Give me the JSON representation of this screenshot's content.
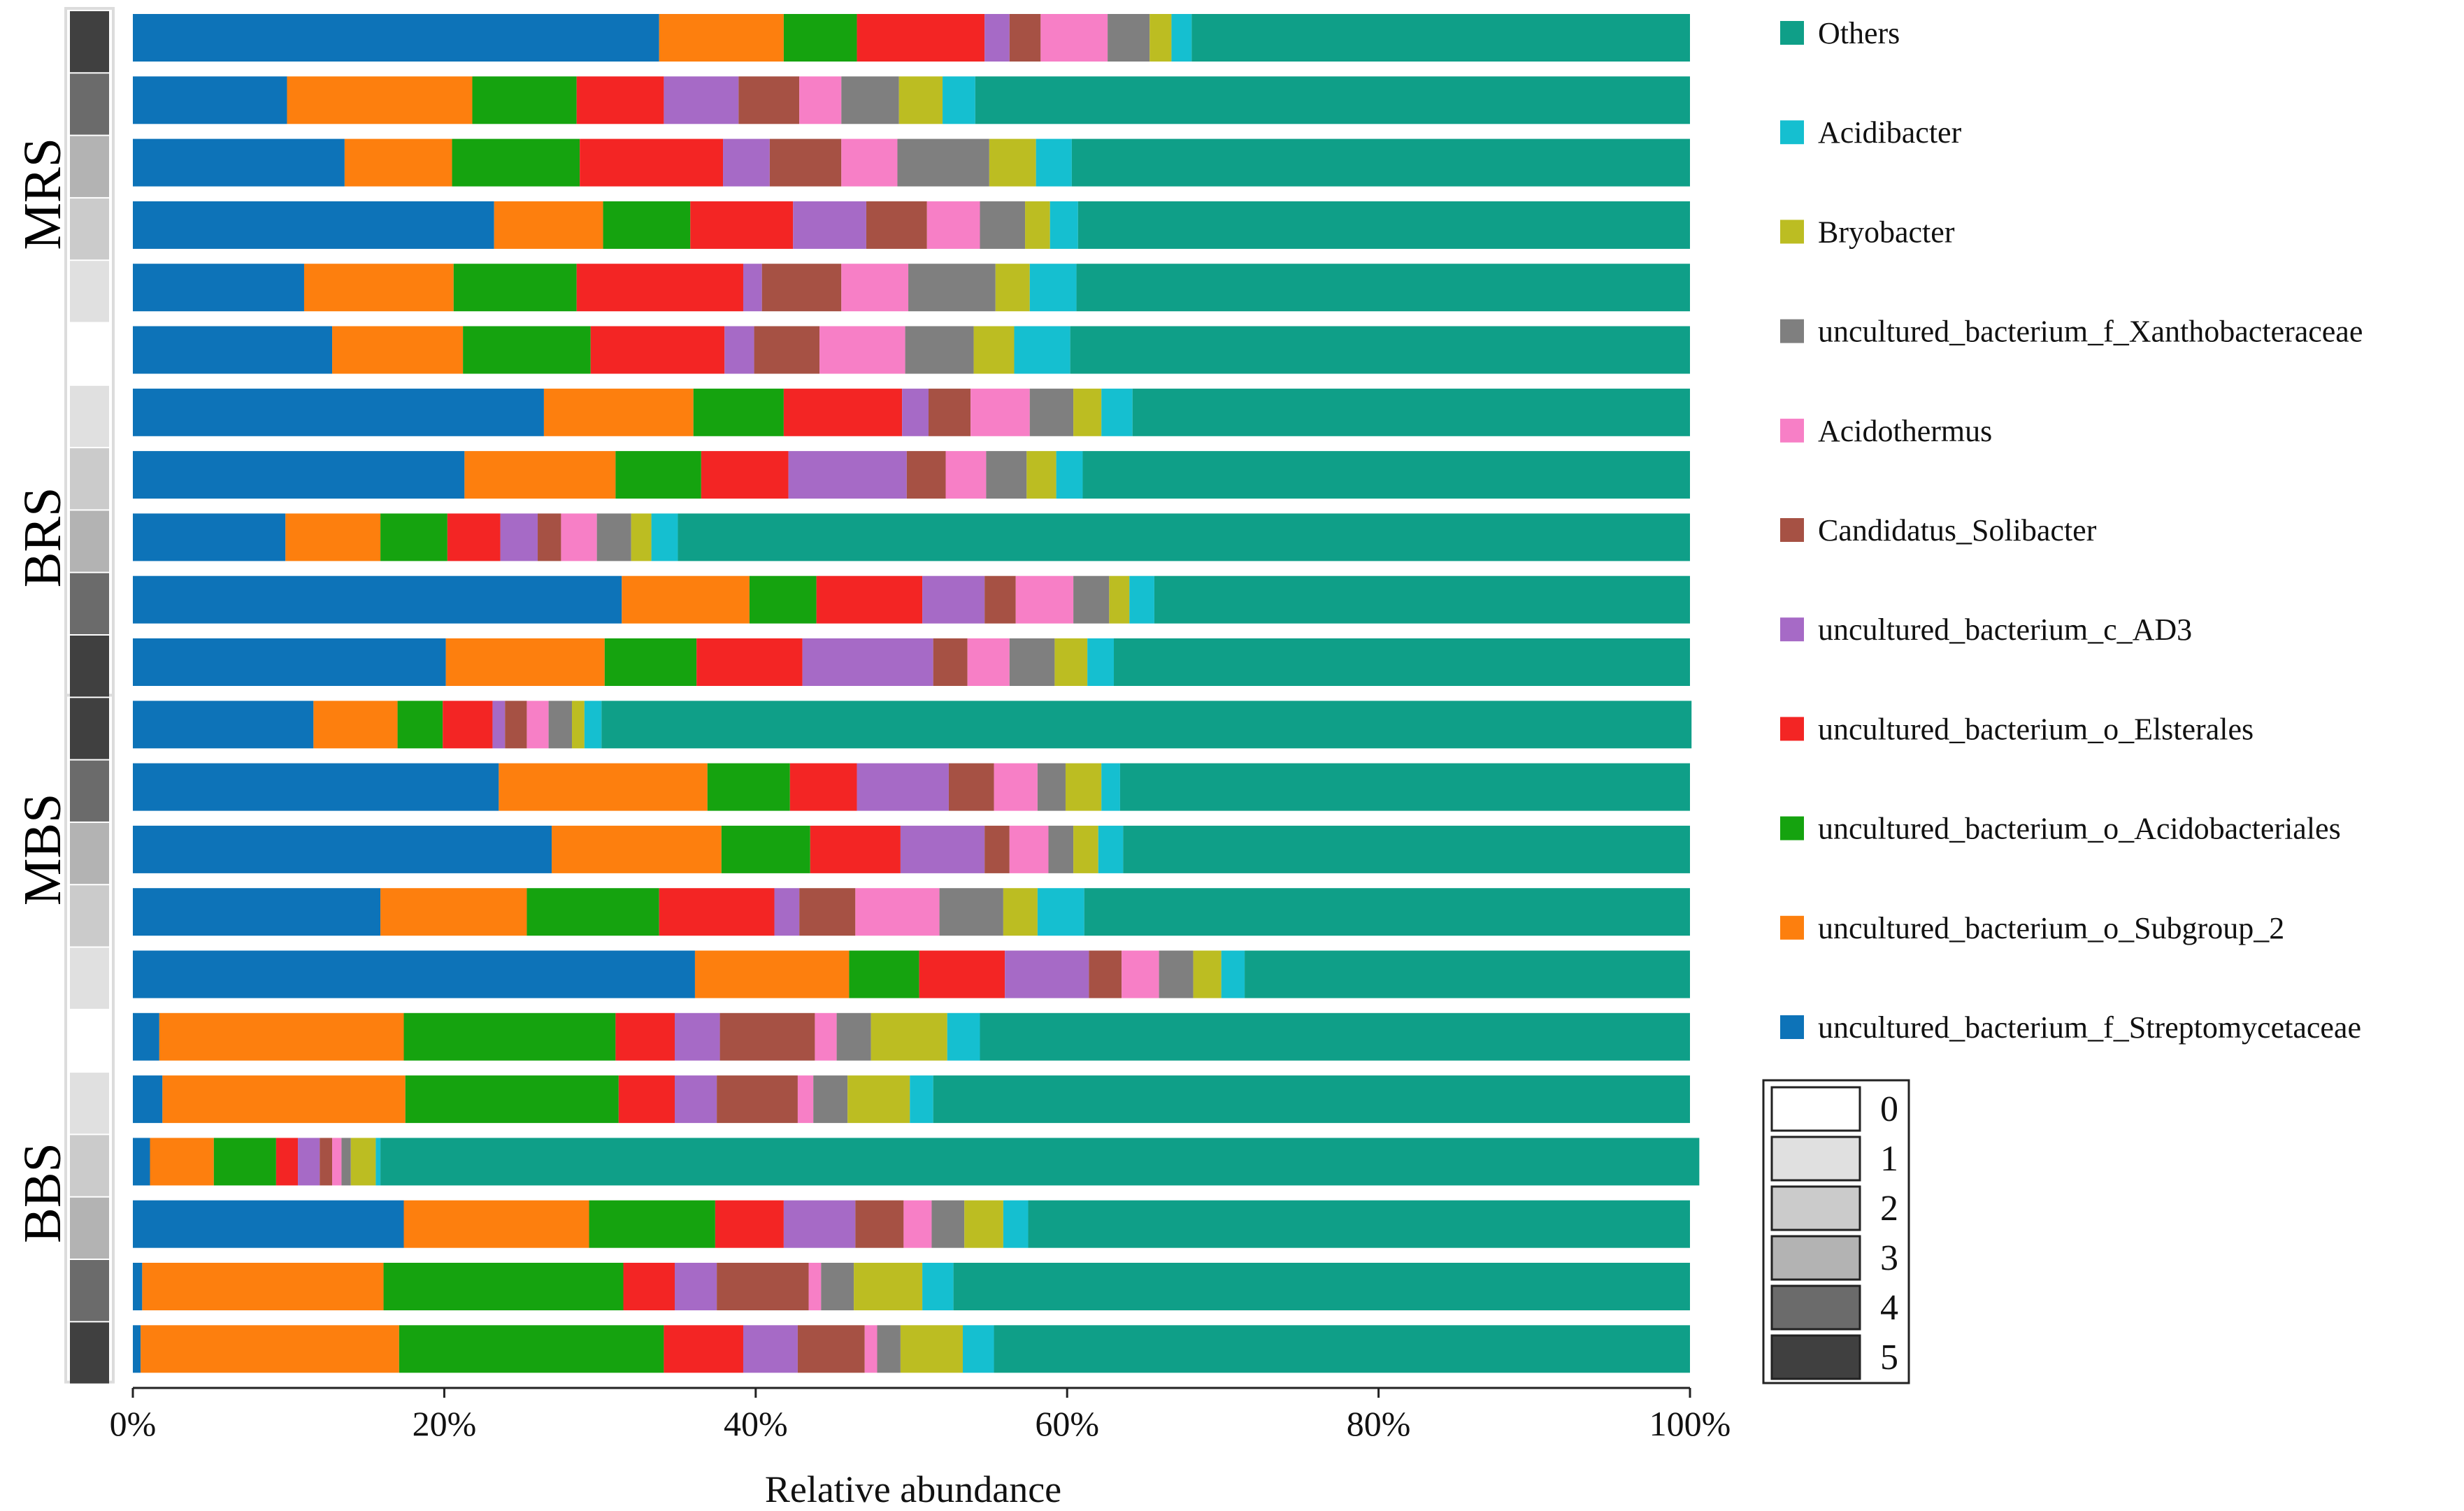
{
  "chart_data": {
    "type": "bar",
    "orientation": "horizontal",
    "stacked": true,
    "normalized": true,
    "xlabel": "Relative abundance",
    "xlim": [
      0,
      100
    ],
    "x_ticks": [
      "0%",
      "20%",
      "40%",
      "60%",
      "80%",
      "100%"
    ],
    "groups": [
      {
        "label": "MRS",
        "rows": [
          0,
          1,
          2,
          3,
          4,
          5
        ]
      },
      {
        "label": "BRS",
        "rows": [
          6,
          7,
          8,
          9,
          10
        ]
      },
      {
        "label": "MBS",
        "rows": [
          11,
          12,
          13,
          14,
          15
        ]
      },
      {
        "label": "BBS",
        "rows": [
          16,
          17,
          18,
          19,
          20,
          21
        ]
      }
    ],
    "heat_levels": [
      5,
      4,
      3,
      2,
      1,
      0,
      1,
      2,
      3,
      4,
      5,
      5,
      4,
      3,
      2,
      1,
      0,
      1,
      2,
      3,
      4,
      5
    ],
    "heat_scale": {
      "levels": [
        "0",
        "1",
        "2",
        "3",
        "4",
        "5"
      ],
      "colors": [
        "#ffffff",
        "#e0e0e0",
        "#cbcbcb",
        "#b3b3b3",
        "#6b6b6b",
        "#404040"
      ]
    },
    "series": [
      {
        "name": "uncultured_bacterium_f_Streptomycetaceae",
        "color": "#0d73b8",
        "values": [
          33.8,
          9.9,
          13.6,
          23.2,
          11.0,
          12.8,
          26.4,
          21.3,
          9.8,
          31.4,
          20.1,
          11.6,
          23.5,
          26.9,
          15.9,
          36.1,
          1.7,
          1.9,
          1.1,
          17.4,
          0.6,
          0.5
        ]
      },
      {
        "name": "uncultured_bacterium_o_Subgroup_2",
        "color": "#fd7f0e",
        "values": [
          8.0,
          11.9,
          6.9,
          7.0,
          9.6,
          8.4,
          9.6,
          9.7,
          6.1,
          8.2,
          10.2,
          5.4,
          13.4,
          10.9,
          9.4,
          9.9,
          15.7,
          15.6,
          4.1,
          11.9,
          15.5,
          16.6
        ]
      },
      {
        "name": "uncultured_bacterium_o_Acidobacteriales",
        "color": "#15a30f",
        "values": [
          4.7,
          6.7,
          8.2,
          5.6,
          7.9,
          8.2,
          5.8,
          5.5,
          4.3,
          4.3,
          5.9,
          2.9,
          5.3,
          5.7,
          8.5,
          4.5,
          13.6,
          13.7,
          4.0,
          8.1,
          15.4,
          17.0
        ]
      },
      {
        "name": "uncultured_bacterium_o_Elsterales",
        "color": "#f32524",
        "values": [
          8.2,
          5.6,
          9.2,
          6.6,
          10.7,
          8.6,
          7.6,
          5.6,
          3.4,
          6.8,
          6.8,
          3.2,
          4.3,
          5.8,
          7.4,
          5.5,
          3.8,
          3.6,
          1.4,
          4.4,
          3.3,
          5.1
        ]
      },
      {
        "name": "uncultured_bacterium_c_AD3",
        "color": "#a66ac6",
        "values": [
          1.6,
          4.8,
          3.0,
          4.7,
          1.2,
          1.9,
          1.7,
          7.6,
          2.4,
          4.0,
          8.4,
          0.8,
          5.9,
          5.4,
          1.6,
          5.4,
          2.9,
          2.7,
          1.4,
          4.6,
          2.7,
          3.5
        ]
      },
      {
        "name": "Candidatus_Solibacter",
        "color": "#a65144",
        "values": [
          2.0,
          3.9,
          4.6,
          3.9,
          5.1,
          4.2,
          2.7,
          2.5,
          1.5,
          2.0,
          2.2,
          1.4,
          2.9,
          1.6,
          3.6,
          2.1,
          6.1,
          5.2,
          0.8,
          3.1,
          5.9,
          4.3
        ]
      },
      {
        "name": "Acidothermus",
        "color": "#f77fc6",
        "values": [
          4.3,
          2.7,
          3.6,
          3.4,
          4.3,
          5.5,
          3.8,
          2.6,
          2.3,
          3.7,
          2.7,
          1.4,
          2.8,
          2.5,
          5.4,
          2.4,
          1.4,
          1.0,
          0.6,
          1.8,
          0.8,
          0.8
        ]
      },
      {
        "name": "uncultured_bacterium_f_Xanthobacteraceae",
        "color": "#7f7f7f",
        "values": [
          2.7,
          3.7,
          5.9,
          2.9,
          5.6,
          4.4,
          2.8,
          2.6,
          2.2,
          2.3,
          2.9,
          1.5,
          1.8,
          1.6,
          4.1,
          2.2,
          2.2,
          2.2,
          0.6,
          2.1,
          2.1,
          1.5
        ]
      },
      {
        "name": "Bryobacter",
        "color": "#bcbd22",
        "values": [
          1.4,
          2.8,
          3.0,
          1.6,
          2.2,
          2.6,
          1.8,
          1.9,
          1.3,
          1.3,
          2.1,
          0.8,
          2.3,
          1.6,
          2.2,
          1.8,
          4.9,
          4.0,
          1.6,
          2.5,
          4.4,
          4.0
        ]
      },
      {
        "name": "Acidibacter",
        "color": "#15bfd0",
        "values": [
          1.3,
          2.1,
          2.3,
          1.8,
          3.0,
          3.6,
          2.0,
          1.7,
          1.7,
          1.6,
          1.7,
          1.1,
          1.2,
          1.6,
          3.0,
          1.5,
          2.1,
          1.5,
          0.3,
          1.6,
          2.0,
          2.0
        ]
      },
      {
        "name": "Others",
        "color": "#0f9f88",
        "values": [
          32.0,
          45.9,
          39.7,
          39.3,
          39.4,
          39.8,
          35.8,
          39.0,
          65.0,
          34.4,
          37.0,
          70.0,
          36.6,
          36.4,
          38.9,
          28.6,
          45.6,
          48.6,
          84.7,
          42.5,
          47.3,
          44.7
        ]
      }
    ],
    "legend_order": [
      "Others",
      "Acidibacter",
      "Bryobacter",
      "uncultured_bacterium_f_Xanthobacteraceae",
      "Acidothermus",
      "Candidatus_Solibacter",
      "uncultured_bacterium_c_AD3",
      "uncultured_bacterium_o_Elsterales",
      "uncultured_bacterium_o_Acidobacteriales",
      "uncultured_bacterium_o_Subgroup_2",
      "uncultured_bacterium_f_Streptomycetaceae"
    ],
    "legend_placement": "right"
  }
}
